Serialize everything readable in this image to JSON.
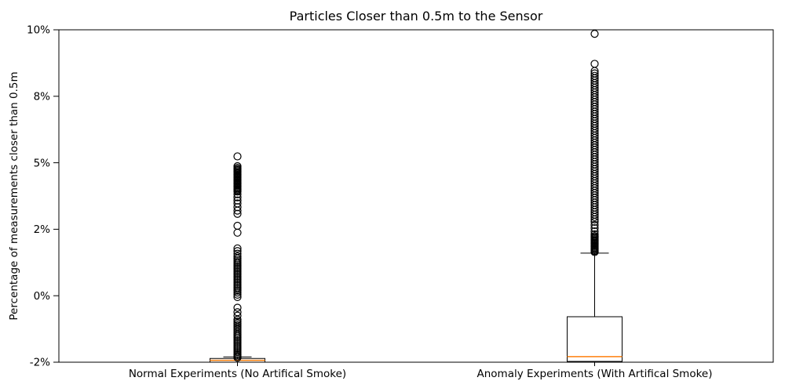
{
  "title": "Particles Closer than 0.5m to the Sensor",
  "chart_data": {
    "type": "boxplot",
    "title": "Particles Closer than 0.5m to the Sensor",
    "xlabel": "",
    "ylabel": "Percentage of measurements closer than 0.5m",
    "legend": "none",
    "grid": false,
    "categories": [
      "Normal Experiments (No Artifical Smoke)",
      "Anomaly Experiments (With Artifical Smoke)"
    ],
    "y_axis": {
      "min": -2.5,
      "max": 10,
      "unit": "%",
      "ticks": [
        {
          "value": 10,
          "label": "10%"
        },
        {
          "value": 7.5,
          "label": "8%"
        },
        {
          "value": 5,
          "label": "5%"
        },
        {
          "value": 2.5,
          "label": "2%"
        },
        {
          "value": 0,
          "label": "0%"
        },
        {
          "value": -2.5,
          "label": "-2%"
        }
      ]
    },
    "series": [
      {
        "name": "Normal Experiments (No Artifical Smoke)",
        "stats": {
          "whisker_low": -2.5,
          "q1": -2.5,
          "median": -2.43,
          "q3": -2.36,
          "whisker_high": -2.3
        },
        "outliers": [
          5.24,
          4.87,
          4.81,
          4.76,
          4.72,
          4.68,
          4.64,
          4.6,
          4.56,
          4.52,
          4.48,
          4.44,
          4.4,
          4.36,
          4.32,
          4.28,
          4.24,
          4.2,
          4.16,
          4.12,
          4.08,
          4.04,
          4.0,
          3.96,
          3.92,
          3.82,
          3.7,
          3.58,
          3.47,
          3.33,
          3.2,
          3.08,
          2.63,
          2.37,
          1.78,
          1.68,
          1.58,
          1.48,
          1.4,
          1.33,
          1.27,
          1.21,
          1.15,
          1.09,
          1.03,
          0.97,
          0.91,
          0.85,
          0.79,
          0.73,
          0.67,
          0.61,
          0.55,
          0.49,
          0.43,
          0.37,
          0.31,
          0.25,
          0.19,
          0.12,
          0.04,
          -0.05,
          -0.45,
          -0.62,
          -0.75,
          -0.9,
          -0.97,
          -1.04,
          -1.11,
          -1.18,
          -1.25,
          -1.32,
          -1.39,
          -1.46,
          -1.52,
          -1.58,
          -1.64,
          -1.7,
          -1.76,
          -1.82,
          -1.88,
          -1.94,
          -2.0,
          -2.06,
          -2.12,
          -2.18,
          -2.23,
          -2.28,
          -2.33
        ]
      },
      {
        "name": "Anomaly Experiments (With Artifical Smoke)",
        "stats": {
          "whisker_low": -2.5,
          "q1": -2.47,
          "median": -2.29,
          "q3": -0.79,
          "whisker_high": 1.6
        },
        "outliers": [
          9.85,
          8.72,
          8.45,
          8.36,
          8.27,
          8.18,
          8.09,
          8.0,
          7.91,
          7.82,
          7.73,
          7.64,
          7.55,
          7.46,
          7.37,
          7.28,
          7.19,
          7.1,
          7.01,
          6.92,
          6.83,
          6.74,
          6.65,
          6.56,
          6.47,
          6.38,
          6.29,
          6.2,
          6.11,
          6.02,
          5.93,
          5.84,
          5.75,
          5.66,
          5.57,
          5.48,
          5.39,
          5.3,
          5.21,
          5.12,
          5.03,
          4.94,
          4.85,
          4.76,
          4.67,
          4.58,
          4.49,
          4.4,
          4.31,
          4.22,
          4.13,
          4.04,
          3.95,
          3.86,
          3.77,
          3.68,
          3.59,
          3.5,
          3.41,
          3.32,
          3.23,
          3.14,
          3.05,
          2.96,
          2.87,
          2.78,
          2.66,
          2.54,
          2.42,
          2.31,
          2.24,
          2.2,
          2.16,
          2.12,
          2.08,
          2.04,
          2.0,
          1.96,
          1.92,
          1.88,
          1.84,
          1.8,
          1.76,
          1.72,
          1.68,
          1.64
        ]
      }
    ],
    "style": {
      "box_color": "#000000",
      "whisker_color": "#000000",
      "median_color": "#ff7f0e",
      "flier_marker": "open-circle",
      "flier_color": "#000000",
      "background": "#ffffff"
    }
  }
}
